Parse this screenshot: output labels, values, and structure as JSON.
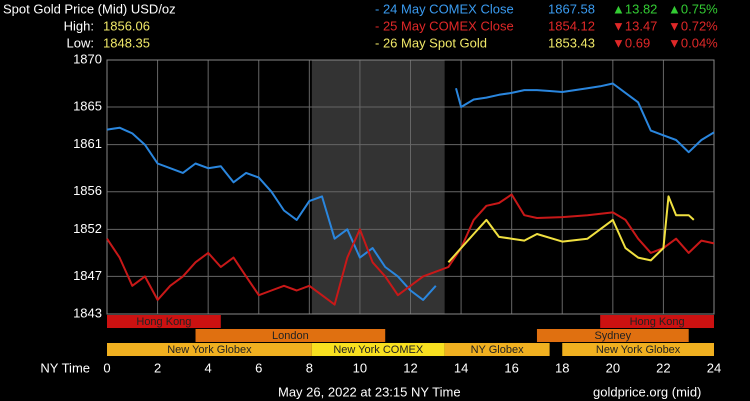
{
  "chart_data": {
    "type": "line",
    "title": "Spot Gold Price (Mid) USD/oz",
    "high_label": "High:",
    "high": "1856.06",
    "low_label": "Low:",
    "low": "1848.35",
    "x_label": "NY Time",
    "footer_date": "May 26, 2022 at 23:15 NY Time",
    "footer_source": "goldprice.org (mid)",
    "xlim": [
      0,
      24
    ],
    "xticks": [
      0,
      2,
      4,
      6,
      8,
      10,
      12,
      14,
      16,
      18,
      20,
      22,
      24
    ],
    "ylim": [
      1843,
      1870
    ],
    "yticks": [
      1843,
      1847,
      1852,
      1856,
      1861,
      1865,
      1870
    ],
    "grid": true,
    "shaded_x": [
      8.1,
      13.35
    ],
    "series": [
      {
        "name": "- 24 May COMEX Close",
        "color": "#2a86de",
        "text_color": "#3a9bf0",
        "last": "1867.58",
        "change": "▲13.82",
        "change_pct": "▲0.75%",
        "change_color": "#33cc33",
        "x": [
          0,
          0.5,
          1,
          1.5,
          2,
          2.5,
          3,
          3.5,
          4,
          4.5,
          5,
          5.5,
          6,
          6.5,
          7,
          7.5,
          8,
          8.5,
          9,
          9.5,
          10,
          10.5,
          11,
          11.5,
          12,
          12.5,
          13,
          13.4,
          13.8,
          14,
          14.5,
          15,
          15.5,
          16,
          16.5,
          17,
          17.5,
          18,
          18.5,
          19,
          19.5,
          20,
          20.5,
          21,
          21.5,
          22,
          22.5,
          23,
          23.5,
          24
        ],
        "values": [
          1862.6,
          1862.8,
          1862.2,
          1861,
          1859,
          1858.5,
          1858,
          1859,
          1858.5,
          1858.7,
          1857,
          1858,
          1857.5,
          1856,
          1854,
          1853,
          1855,
          1855.5,
          1851,
          1852,
          1849,
          1850,
          1848,
          1847,
          1845.5,
          1844.5,
          1846,
          null,
          1867,
          1865,
          1865.8,
          1866,
          1866.3,
          1866.5,
          1866.8,
          1866.8,
          1866.7,
          1866.6,
          1866.8,
          1867,
          1867.2,
          1867.5,
          1866.5,
          1865.5,
          1862.5,
          1862,
          1861.5,
          1860.2,
          1861.5,
          1862.3
        ]
      },
      {
        "name": "- 25 May COMEX Close",
        "color": "#c81818",
        "text_color": "#e02828",
        "last": "1854.12",
        "change": "▼13.47",
        "change_pct": "▼0.72%",
        "change_color": "#e02828",
        "x": [
          0,
          0.5,
          1,
          1.5,
          2,
          2.5,
          3,
          3.5,
          4,
          4.5,
          5,
          5.5,
          6,
          6.5,
          7,
          7.5,
          8,
          8.5,
          9,
          9.5,
          10,
          10.5,
          11,
          11.5,
          12,
          12.5,
          13,
          13.5,
          14,
          14.5,
          15,
          15.5,
          16,
          16.5,
          17,
          18,
          19,
          20,
          20.5,
          21,
          21.5,
          22,
          22.5,
          23,
          23.5,
          24
        ],
        "values": [
          1851,
          1849,
          1846,
          1847,
          1844.5,
          1846,
          1847,
          1848.5,
          1849.5,
          1848,
          1849,
          1847,
          1845,
          1845.5,
          1846,
          1845.5,
          1846,
          1845,
          1844,
          1849,
          1852,
          1848.5,
          1847,
          1845,
          1846,
          1847,
          1847.5,
          1848,
          1850,
          1853,
          1854.5,
          1854.8,
          1855.7,
          1853.5,
          1853.2,
          1853.3,
          1853.5,
          1853.8,
          1853,
          1851,
          1849.5,
          1850,
          1851,
          1849.5,
          1850.8,
          1850.5
        ]
      },
      {
        "name": "- 26 May Spot Gold",
        "color": "#f0e040",
        "text_color": "#f0e868",
        "last": "1853.43",
        "change": "▼0.69",
        "change_pct": "▼0.04%",
        "change_color": "#e02828",
        "x": [
          13.5,
          14,
          14.5,
          15,
          15.5,
          16,
          16.5,
          17,
          18,
          19,
          19.5,
          20,
          20.5,
          21,
          21.5,
          22,
          22.2,
          22.5,
          23,
          23.2
        ],
        "values": [
          1848.5,
          1850,
          1851.5,
          1853,
          1851.2,
          1851,
          1850.8,
          1851.5,
          1850.7,
          1851,
          1852,
          1853,
          1850,
          1849,
          1848.7,
          1850,
          1855.5,
          1853.5,
          1853.5,
          1853
        ]
      }
    ],
    "session_rows": [
      [
        {
          "label": "Hong Kong",
          "start": 0,
          "end": 4.5,
          "color": "#cc1111"
        },
        {
          "label": "Hong Kong",
          "start": 19.5,
          "end": 24,
          "color": "#cc1111"
        }
      ],
      [
        {
          "label": "London",
          "start": 3.5,
          "end": 11,
          "color": "#e07010"
        },
        {
          "label": "Sydney",
          "start": 17,
          "end": 23,
          "color": "#e07010"
        }
      ],
      [
        {
          "label": "New York Globex",
          "start": 0,
          "end": 8.1,
          "color": "#f0b020"
        },
        {
          "label": "New York COMEX",
          "start": 8.1,
          "end": 13.35,
          "color": "#f8e020"
        },
        {
          "label": "NY Globex",
          "start": 13.35,
          "end": 17.5,
          "color": "#f0b020"
        },
        {
          "label": "New York Globex",
          "start": 18,
          "end": 24,
          "color": "#f0b020"
        }
      ]
    ]
  }
}
